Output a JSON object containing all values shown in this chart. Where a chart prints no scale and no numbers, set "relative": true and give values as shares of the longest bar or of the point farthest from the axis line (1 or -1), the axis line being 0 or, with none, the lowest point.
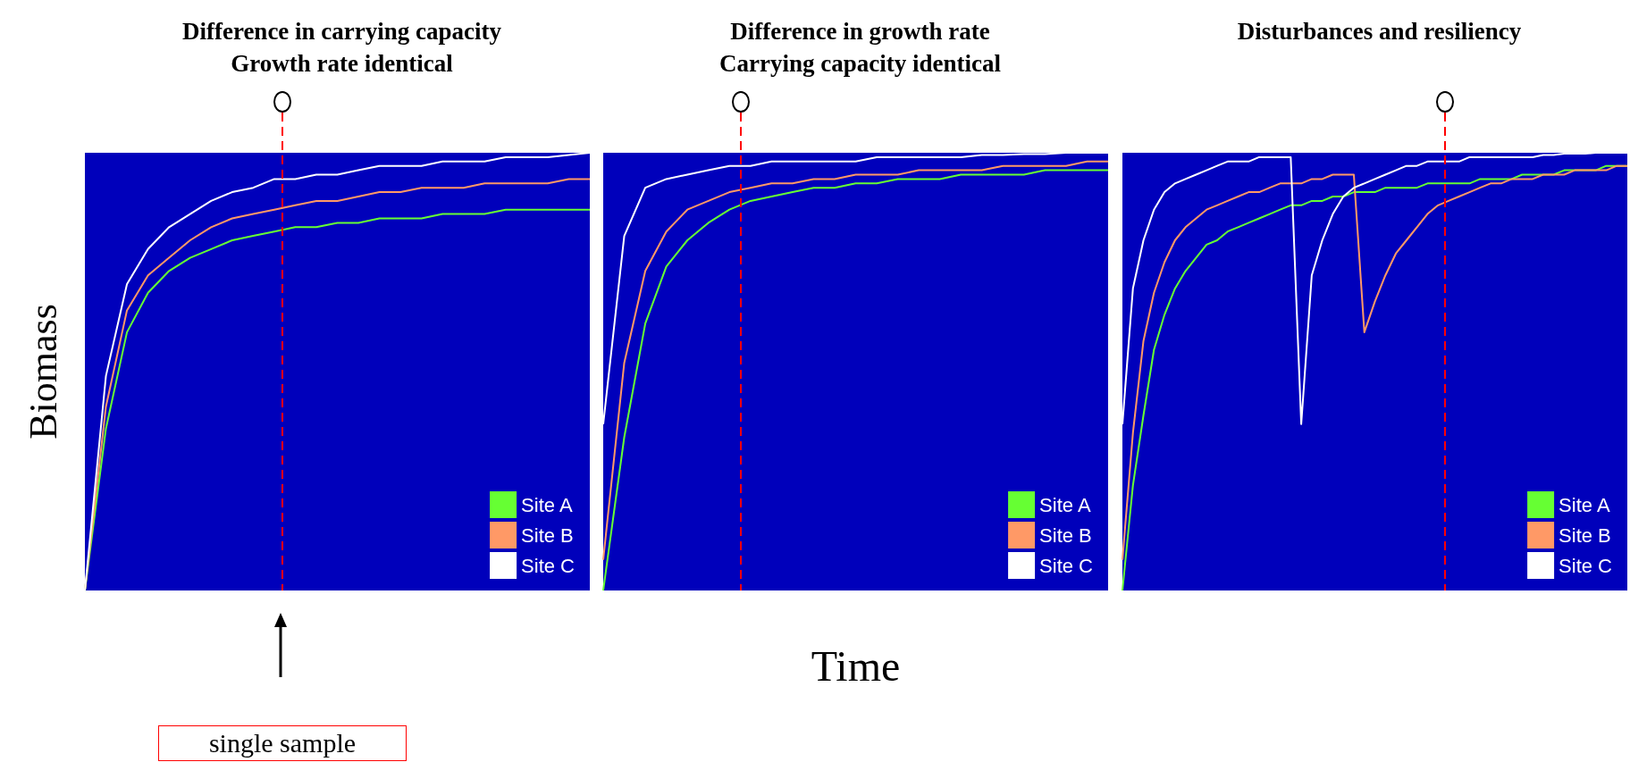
{
  "chart_data": [
    {
      "type": "line",
      "title": "Difference in carrying capacity\nGrowth rate identical",
      "ylabel": "Biomass",
      "relative": true,
      "legend": "bottom right",
      "annotations": [
        "single sample"
      ],
      "categories": [
        null,
        null,
        null,
        null,
        null,
        null,
        null,
        null,
        null,
        null,
        null,
        null,
        null,
        null,
        null,
        null,
        null,
        null,
        null,
        null,
        null,
        null,
        null,
        null,
        null
      ],
      "series": [
        {
          "name": "Site A",
          "color": "#66ff33",
          "values": [
            0,
            0.37,
            0.59,
            0.68,
            0.73,
            0.76,
            0.78,
            0.8,
            0.81,
            0.82,
            0.83,
            0.83,
            0.84,
            0.84,
            0.85,
            0.85,
            0.85,
            0.86,
            0.86,
            0.86,
            0.87,
            0.87,
            0.87,
            0.87,
            0.87
          ]
        },
        {
          "name": "Site B",
          "color": "#ff9966",
          "values": [
            0,
            0.42,
            0.64,
            0.72,
            0.76,
            0.8,
            0.83,
            0.85,
            0.86,
            0.87,
            0.88,
            0.89,
            0.89,
            0.9,
            0.91,
            0.91,
            0.92,
            0.92,
            0.92,
            0.93,
            0.93,
            0.93,
            0.93,
            0.94,
            0.94
          ]
        },
        {
          "name": "Site C",
          "color": "#ffffff",
          "values": [
            0,
            0.49,
            0.7,
            0.78,
            0.83,
            0.86,
            0.89,
            0.91,
            0.92,
            0.94,
            0.94,
            0.95,
            0.95,
            0.96,
            0.97,
            0.97,
            0.97,
            0.98,
            0.98,
            0.98,
            0.99,
            0.99,
            0.99,
            0.995,
            1
          ]
        }
      ]
    },
    {
      "type": "line",
      "title": "Difference in growth rate\nCarrying capacity identical",
      "xlabel": "Time",
      "relative": true,
      "legend": "bottom right",
      "categories": [
        null,
        null,
        null,
        null,
        null,
        null,
        null,
        null,
        null,
        null,
        null,
        null,
        null,
        null,
        null,
        null,
        null,
        null,
        null,
        null,
        null,
        null,
        null,
        null,
        null
      ],
      "series": [
        {
          "name": "Site A",
          "color": "#66ff33",
          "values": [
            0,
            0.35,
            0.61,
            0.74,
            0.8,
            0.84,
            0.87,
            0.89,
            0.9,
            0.91,
            0.92,
            0.92,
            0.93,
            0.93,
            0.94,
            0.94,
            0.94,
            0.95,
            0.95,
            0.95,
            0.95,
            0.96,
            0.96,
            0.96,
            0.96
          ]
        },
        {
          "name": "Site B",
          "color": "#ff9966",
          "values": [
            0.07,
            0.52,
            0.73,
            0.82,
            0.87,
            0.89,
            0.91,
            0.92,
            0.93,
            0.93,
            0.94,
            0.94,
            0.95,
            0.95,
            0.95,
            0.96,
            0.96,
            0.96,
            0.96,
            0.97,
            0.97,
            0.97,
            0.97,
            0.98,
            0.98
          ]
        },
        {
          "name": "Site C",
          "color": "#ffffff",
          "values": [
            0.38,
            0.81,
            0.92,
            0.94,
            0.95,
            0.96,
            0.97,
            0.97,
            0.98,
            0.98,
            0.98,
            0.98,
            0.98,
            0.99,
            0.99,
            0.99,
            0.99,
            0.99,
            0.995,
            0.995,
            0.997,
            0.997,
            1,
            1,
            1
          ]
        }
      ]
    },
    {
      "type": "line",
      "title": "Disturbances and resiliency",
      "relative": true,
      "legend": "bottom right",
      "categories": [
        null,
        null,
        null,
        null,
        null,
        null,
        null,
        null,
        null,
        null,
        null,
        null,
        null,
        null,
        null,
        null,
        null,
        null,
        null,
        null,
        null,
        null,
        null,
        null,
        null,
        null,
        null,
        null,
        null,
        null,
        null,
        null,
        null,
        null,
        null,
        null,
        null,
        null,
        null,
        null,
        null,
        null,
        null,
        null,
        null,
        null,
        null,
        null,
        null
      ],
      "series": [
        {
          "name": "Site A",
          "color": "#66ff33",
          "values": [
            0,
            0.24,
            0.4,
            0.55,
            0.63,
            0.69,
            0.73,
            0.76,
            0.79,
            0.8,
            0.82,
            0.83,
            0.84,
            0.85,
            0.86,
            0.87,
            0.88,
            0.88,
            0.89,
            0.89,
            0.9,
            0.9,
            0.91,
            0.91,
            0.91,
            0.92,
            0.92,
            0.92,
            0.92,
            0.93,
            0.93,
            0.93,
            0.93,
            0.93,
            0.94,
            0.94,
            0.94,
            0.94,
            0.95,
            0.95,
            0.95,
            0.95,
            0.96,
            0.96,
            0.96,
            0.96,
            0.97,
            0.97,
            0.97
          ]
        },
        {
          "name": "Site B",
          "color": "#ff9966",
          "values": [
            0.07,
            0.36,
            0.57,
            0.68,
            0.75,
            0.8,
            0.83,
            0.85,
            0.87,
            0.88,
            0.89,
            0.9,
            0.91,
            0.91,
            0.92,
            0.93,
            0.93,
            0.93,
            0.94,
            0.94,
            0.95,
            0.95,
            0.95,
            0.59,
            0.66,
            0.72,
            0.77,
            0.8,
            0.83,
            0.86,
            0.88,
            0.89,
            0.9,
            0.91,
            0.92,
            0.93,
            0.93,
            0.94,
            0.94,
            0.94,
            0.95,
            0.95,
            0.95,
            0.96,
            0.96,
            0.96,
            0.96,
            0.97,
            0.97
          ]
        },
        {
          "name": "Site C",
          "color": "#ffffff",
          "values": [
            0.38,
            0.69,
            0.8,
            0.87,
            0.91,
            0.93,
            0.94,
            0.95,
            0.96,
            0.97,
            0.98,
            0.98,
            0.98,
            0.99,
            0.99,
            0.99,
            0.99,
            0.38,
            0.72,
            0.8,
            0.86,
            0.9,
            0.92,
            0.93,
            0.94,
            0.95,
            0.96,
            0.97,
            0.97,
            0.98,
            0.98,
            0.98,
            0.98,
            0.99,
            0.99,
            0.99,
            0.99,
            0.99,
            0.99,
            0.99,
            0.995,
            0.995,
            0.998,
            0.998,
            0.998,
            1,
            1,
            1,
            1
          ]
        }
      ]
    }
  ]
}
